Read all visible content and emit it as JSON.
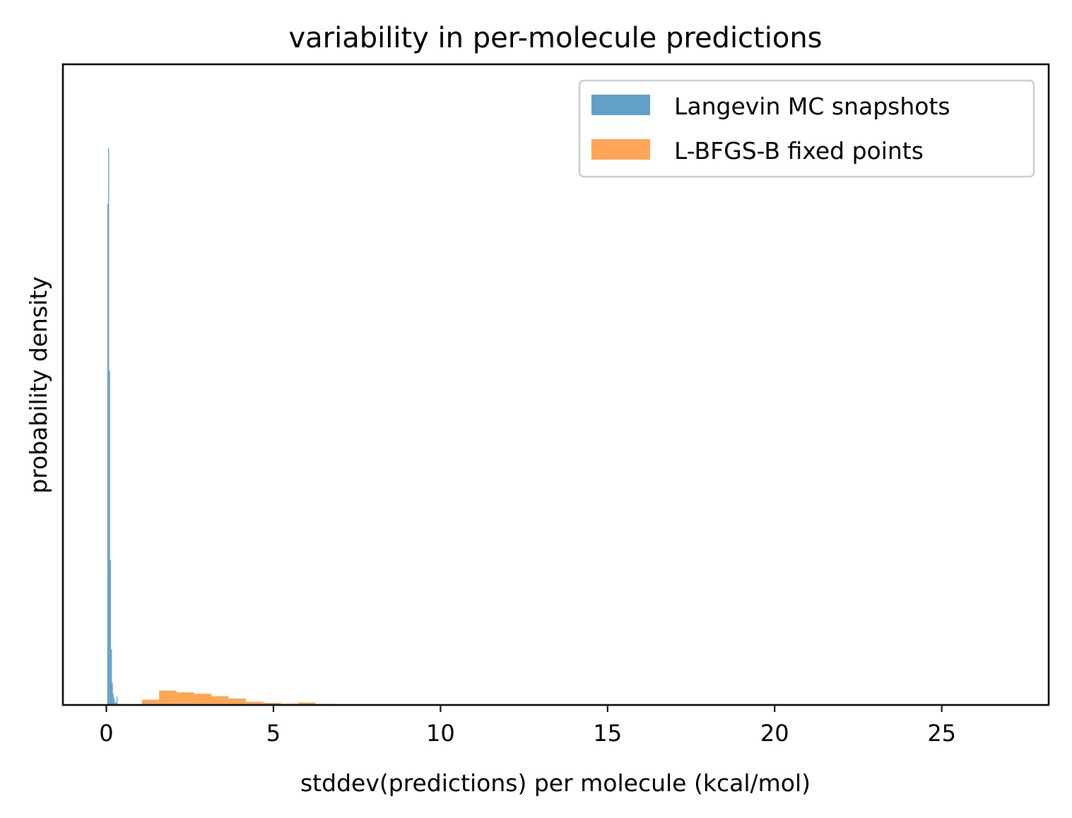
{
  "chart_data": {
    "type": "bar",
    "title": "variability in per-molecule predictions",
    "xlabel": "stddev(predictions) per molecule (kcal/mol)",
    "ylabel": "probability density",
    "xlim": [
      -1.3,
      28.2
    ],
    "ylim": [
      0,
      1.0
    ],
    "x_ticks": [
      0,
      5,
      10,
      15,
      20,
      25
    ],
    "x_tick_labels": [
      "0",
      "5",
      "10",
      "15",
      "20",
      "25"
    ],
    "y_ticks_visible": false,
    "grid": false,
    "legend_position": "top-right",
    "series": [
      {
        "name": "Langevin MC snapshots",
        "color": "#1f77b4",
        "alpha": 0.7,
        "bin_width": 0.0277,
        "bins": [
          {
            "x0": 0.0,
            "height": 0.0
          },
          {
            "x0": 0.0277,
            "height": 0.9
          },
          {
            "x0": 0.0554,
            "height": 1.0
          },
          {
            "x0": 0.0831,
            "height": 0.6
          },
          {
            "x0": 0.1108,
            "height": 0.26
          },
          {
            "x0": 0.1385,
            "height": 0.1
          },
          {
            "x0": 0.1662,
            "height": 0.04
          },
          {
            "x0": 0.1939,
            "height": 0.02
          },
          {
            "x0": 0.2216,
            "height": 0.012
          },
          {
            "x0": 0.2493,
            "height": 0.005
          },
          {
            "x0": 0.277,
            "height": 0.004
          },
          {
            "x0": 0.3047,
            "height": 0.015
          }
        ]
      },
      {
        "name": "L-BFGS-B fixed points",
        "color": "#ff7f0e",
        "alpha": 0.7,
        "bin_width": 0.52,
        "bins": [
          {
            "x0": 1.06,
            "height": 0.0095
          },
          {
            "x0": 1.58,
            "height": 0.0259
          },
          {
            "x0": 2.1,
            "height": 0.0227
          },
          {
            "x0": 2.62,
            "height": 0.0202
          },
          {
            "x0": 3.14,
            "height": 0.0158
          },
          {
            "x0": 3.66,
            "height": 0.0114
          },
          {
            "x0": 4.18,
            "height": 0.0057
          },
          {
            "x0": 4.7,
            "height": 0.0038
          },
          {
            "x0": 5.22,
            "height": 0.0025
          },
          {
            "x0": 5.74,
            "height": 0.0044
          },
          {
            "x0": 6.26,
            "height": 0.0019
          },
          {
            "x0": 6.78,
            "height": 0.0006
          }
        ]
      }
    ]
  }
}
